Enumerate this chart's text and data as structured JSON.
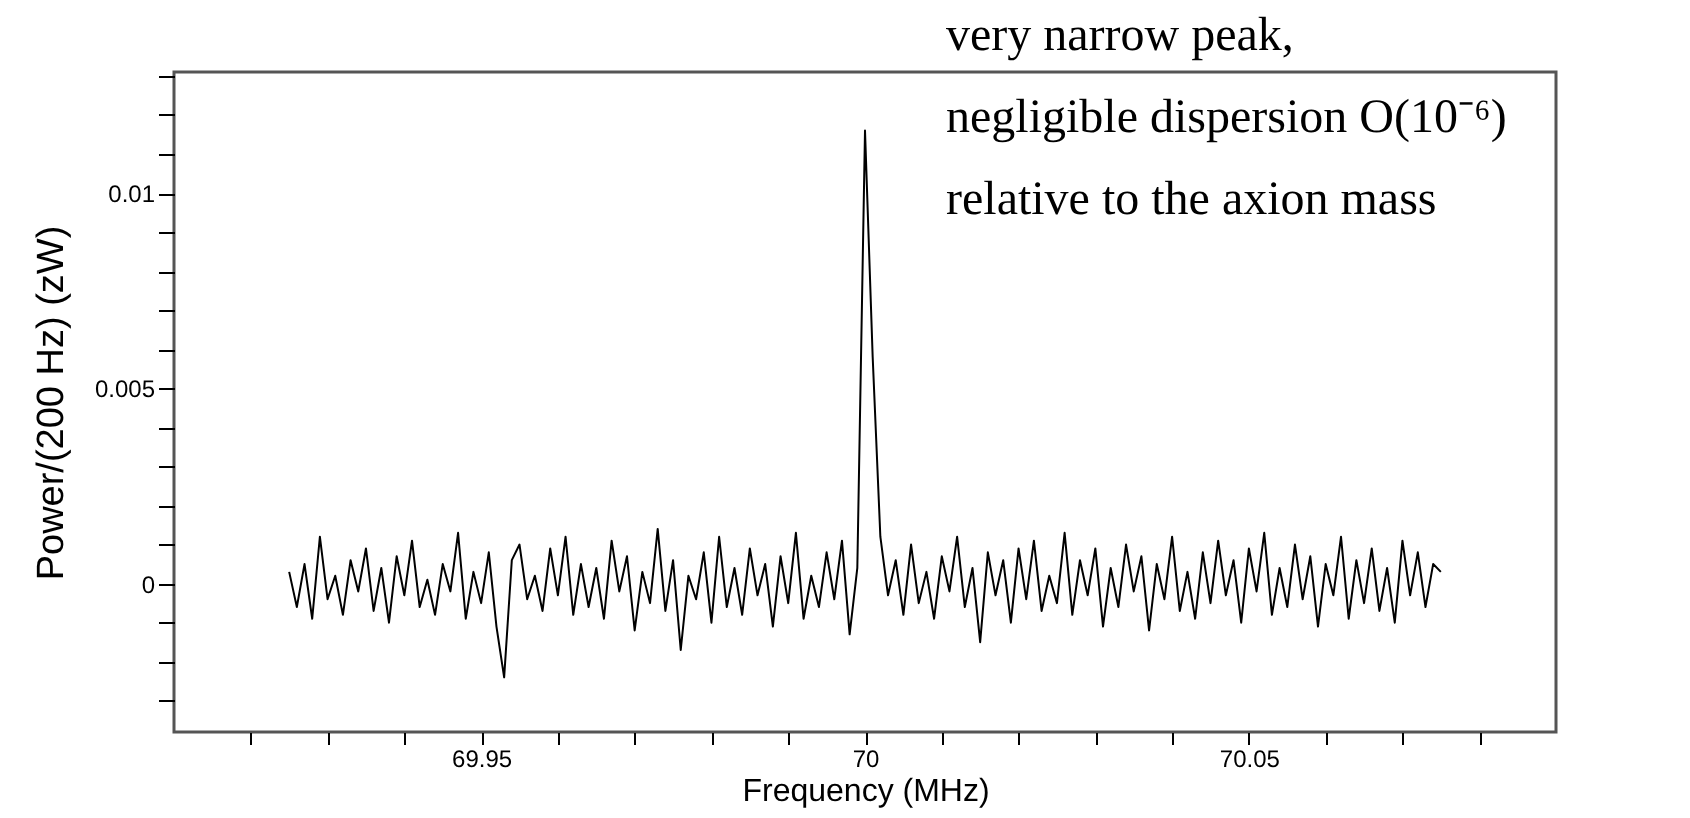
{
  "chart_data": {
    "type": "line",
    "xlabel": "Frequency (MHz)",
    "ylabel": "Power/(200 Hz) (zW)",
    "annotations": [
      "very narrow peak,",
      "negligible dispersion O(10⁻⁶)",
      "relative to the axion mass"
    ],
    "xlim": [
      69.91,
      70.09
    ],
    "ylim": [
      -0.0038,
      0.0131
    ],
    "xticks": [
      {
        "value": 69.92,
        "label": null
      },
      {
        "value": 69.93,
        "label": null
      },
      {
        "value": 69.94,
        "label": null
      },
      69.95,
      {
        "value": 69.96,
        "label": null
      },
      {
        "value": 69.97,
        "label": null
      },
      {
        "value": 69.98,
        "label": null
      },
      {
        "value": 69.99,
        "label": null
      },
      70,
      {
        "value": 70.01,
        "label": null
      },
      {
        "value": 70.02,
        "label": null
      },
      {
        "value": 70.03,
        "label": null
      },
      {
        "value": 70.04,
        "label": null
      },
      70.05,
      {
        "value": 70.06,
        "label": null
      },
      {
        "value": 70.07,
        "label": null
      },
      {
        "value": 70.08,
        "label": null
      }
    ],
    "yticks": [
      {
        "value": -0.003,
        "label": null
      },
      {
        "value": -0.002,
        "label": null
      },
      {
        "value": -0.001,
        "label": null
      },
      0,
      {
        "value": 0.001,
        "label": null
      },
      {
        "value": 0.002,
        "label": null
      },
      {
        "value": 0.003,
        "label": null
      },
      {
        "value": 0.004,
        "label": null
      },
      0.005,
      {
        "value": 0.006,
        "label": null
      },
      {
        "value": 0.007,
        "label": null
      },
      {
        "value": 0.008,
        "label": null
      },
      {
        "value": 0.009,
        "label": null
      },
      0.01,
      {
        "value": 0.011,
        "label": null
      },
      {
        "value": 0.012,
        "label": null
      },
      {
        "value": 0.013,
        "label": null
      }
    ],
    "grid": false,
    "marker": "none",
    "line_style": "solid",
    "series": [
      {
        "color": "#000000",
        "x": [
          69.925,
          69.926,
          69.927,
          69.928,
          69.929,
          69.93,
          69.931,
          69.932,
          69.933,
          69.934,
          69.935,
          69.936,
          69.937,
          69.938,
          69.939,
          69.94,
          69.941,
          69.942,
          69.943,
          69.944,
          69.945,
          69.946,
          69.947,
          69.948,
          69.949,
          69.95,
          69.951,
          69.952,
          69.953,
          69.954,
          69.955,
          69.956,
          69.957,
          69.958,
          69.959,
          69.96,
          69.961,
          69.962,
          69.963,
          69.964,
          69.965,
          69.966,
          69.967,
          69.968,
          69.969,
          69.97,
          69.971,
          69.972,
          69.973,
          69.974,
          69.975,
          69.976,
          69.977,
          69.978,
          69.979,
          69.98,
          69.981,
          69.982,
          69.983,
          69.984,
          69.985,
          69.986,
          69.987,
          69.988,
          69.989,
          69.99,
          69.991,
          69.992,
          69.993,
          69.994,
          69.995,
          69.996,
          69.997,
          69.998,
          69.999,
          70.0,
          70.001,
          70.002,
          70.003,
          70.004,
          70.005,
          70.006,
          70.007,
          70.008,
          70.009,
          70.01,
          70.011,
          70.012,
          70.013,
          70.014,
          70.015,
          70.016,
          70.017,
          70.018,
          70.019,
          70.02,
          70.021,
          70.022,
          70.023,
          70.024,
          70.025,
          70.026,
          70.027,
          70.028,
          70.029,
          70.03,
          70.031,
          70.032,
          70.033,
          70.034,
          70.035,
          70.036,
          70.037,
          70.038,
          70.039,
          70.04,
          70.041,
          70.042,
          70.043,
          70.044,
          70.045,
          70.046,
          70.047,
          70.048,
          70.049,
          70.05,
          70.051,
          70.052,
          70.053,
          70.054,
          70.055,
          70.056,
          70.057,
          70.058,
          70.059,
          70.06,
          70.061,
          70.062,
          70.063,
          70.064,
          70.065,
          70.066,
          70.067,
          70.068,
          70.069,
          70.07,
          70.071,
          70.072,
          70.073,
          70.074,
          70.075
        ],
        "values": [
          0.0003,
          -0.0006,
          0.0005,
          -0.0009,
          0.0012,
          -0.0004,
          0.0002,
          -0.0008,
          0.0006,
          -0.0002,
          0.0009,
          -0.0007,
          0.0004,
          -0.001,
          0.0007,
          -0.0003,
          0.0011,
          -0.0006,
          0.0001,
          -0.0008,
          0.0005,
          -0.0002,
          0.0013,
          -0.0009,
          0.0003,
          -0.0005,
          0.0008,
          -0.0011,
          -0.0024,
          0.0006,
          0.001,
          -0.0004,
          0.0002,
          -0.0007,
          0.0009,
          -0.0003,
          0.0012,
          -0.0008,
          0.0005,
          -0.0006,
          0.0004,
          -0.0009,
          0.0011,
          -0.0002,
          0.0007,
          -0.0012,
          0.0003,
          -0.0005,
          0.0014,
          -0.0007,
          0.0006,
          -0.0017,
          0.0002,
          -0.0004,
          0.0008,
          -0.001,
          0.0012,
          -0.0006,
          0.0004,
          -0.0008,
          0.0009,
          -0.0003,
          0.0005,
          -0.0011,
          0.0007,
          -0.0005,
          0.0013,
          -0.0009,
          0.0002,
          -0.0006,
          0.0008,
          -0.0004,
          0.0011,
          -0.0013,
          0.0004,
          0.0116,
          0.0058,
          0.0012,
          -0.0003,
          0.0006,
          -0.0008,
          0.001,
          -0.0005,
          0.0003,
          -0.0009,
          0.0007,
          -0.0002,
          0.0012,
          -0.0006,
          0.0004,
          -0.0015,
          0.0008,
          -0.0003,
          0.0006,
          -0.001,
          0.0009,
          -0.0004,
          0.0011,
          -0.0007,
          0.0002,
          -0.0005,
          0.0013,
          -0.0008,
          0.0006,
          -0.0003,
          0.0009,
          -0.0011,
          0.0004,
          -0.0006,
          0.001,
          -0.0002,
          0.0007,
          -0.0012,
          0.0005,
          -0.0004,
          0.0012,
          -0.0007,
          0.0003,
          -0.0009,
          0.0008,
          -0.0005,
          0.0011,
          -0.0003,
          0.0006,
          -0.001,
          0.0009,
          -0.0002,
          0.0013,
          -0.0008,
          0.0004,
          -0.0006,
          0.001,
          -0.0004,
          0.0007,
          -0.0011,
          0.0005,
          -0.0003,
          0.0012,
          -0.0009,
          0.0006,
          -0.0005,
          0.0009,
          -0.0007,
          0.0004,
          -0.001,
          0.0011,
          -0.0003,
          0.0008,
          -0.0006,
          0.0005,
          0.0003
        ]
      }
    ]
  }
}
